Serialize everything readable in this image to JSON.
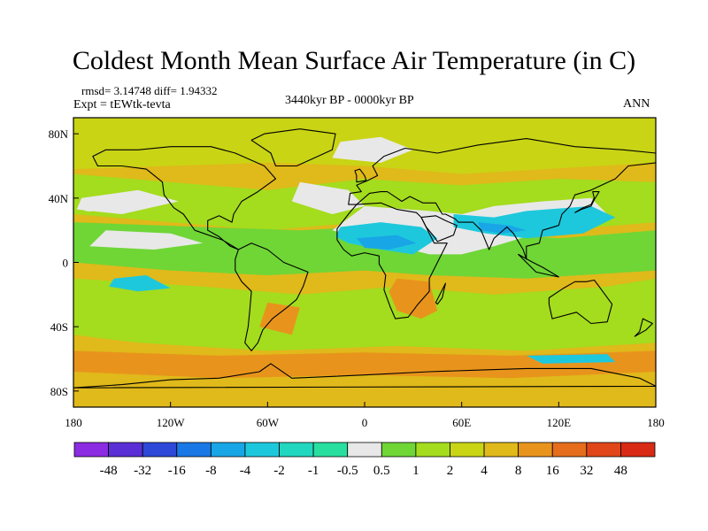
{
  "chart_data": {
    "type": "heatmap",
    "title": "Coldest Month Mean Surface Air Temperature (in C)",
    "stats_text": "rmsd= 3.14748  diff= 1.94332",
    "experiment": "Expt = tEWtk-tevta",
    "period": "3440kyr BP - 0000kyr BP",
    "season": "ANN",
    "x_ticks": [
      "180",
      "120W",
      "60W",
      "0",
      "60E",
      "120E",
      "180"
    ],
    "y_ticks": [
      "80N",
      "40N",
      "0",
      "40S",
      "80S"
    ],
    "colorbar_levels": [
      "-48",
      "-32",
      "-16",
      "-8",
      "-4",
      "-2",
      "-1",
      "-0.5",
      "0.5",
      "1",
      "2",
      "4",
      "8",
      "16",
      "32",
      "48"
    ],
    "colorbar_colors": [
      "#8b2be2",
      "#5a2fd6",
      "#2e48d8",
      "#1a78e6",
      "#18a6e6",
      "#1ec8dc",
      "#22d7bf",
      "#28dfa0",
      "#e8e8e8",
      "#6fd636",
      "#a4dc1e",
      "#c9d415",
      "#e0b91a",
      "#e8941c",
      "#e56d1c",
      "#e0461a",
      "#d82a14"
    ],
    "map_palette": {
      "base_warm": "#e0b91a",
      "mild": "#c9d415",
      "cool": "#a4dc1e",
      "cool2": "#6fd636",
      "neutral": "#e8e8e8",
      "cold": "#1ec8dc",
      "cold2": "#18a6e6",
      "hot": "#e8941c"
    }
  }
}
